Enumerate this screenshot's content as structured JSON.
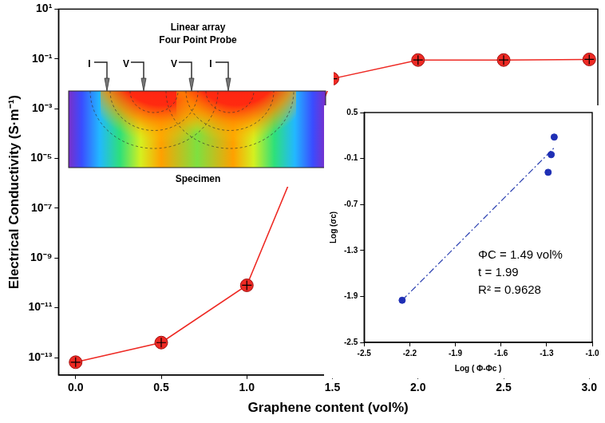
{
  "chart_data": [
    {
      "type": "line",
      "x_label": "Graphene content (vol%)",
      "y_label": "Electrical Conductivity (S·m⁻¹)",
      "x": [
        0,
        0.5,
        1,
        1.5,
        2,
        2.5,
        3
      ],
      "series": [
        {
          "color": "#ee2a24",
          "marker": "circle",
          "values": [
            6.5e-14,
            4e-13,
            8e-11,
            0.016,
            0.09,
            0.09,
            0.095
          ]
        }
      ],
      "log": "y",
      "xlim": [
        -0.1,
        3.05
      ],
      "ylim": [
        2e-14,
        10
      ],
      "xticks": [
        {
          "value": 0,
          "label": "0.0"
        },
        0.5,
        {
          "value": 1,
          "label": "1.0"
        },
        1.5,
        {
          "value": 2,
          "label": "2.0"
        },
        2.5,
        {
          "value": 3,
          "label": "3.0"
        }
      ],
      "yticks": [
        {
          "value": 1e-13,
          "label": "10⁻¹³"
        },
        {
          "value": 1e-11,
          "label": "10⁻¹¹"
        },
        {
          "value": 1e-09,
          "label": "10⁻⁹"
        },
        {
          "value": 1e-07,
          "label": "10⁻⁷"
        },
        {
          "value": 1e-05,
          "label": "10⁻⁵"
        },
        {
          "value": 0.001,
          "label": "10⁻³"
        },
        {
          "value": 0.1,
          "label": "10⁻¹"
        },
        {
          "value": 10,
          "label": "10¹"
        }
      ],
      "grid": false
    },
    {
      "type": "scatter",
      "x_label": "Log ( Φ-Φc )",
      "y_label": "Log (σc)",
      "series": [
        {
          "type": "scatter",
          "color": "#1f2fb5",
          "marker": "circle",
          "x": [
            -2.25,
            -1.29,
            -1.27,
            -1.25
          ],
          "values": [
            -1.95,
            -0.28,
            -0.05,
            0.18
          ]
        },
        {
          "type": "line",
          "color": "#2a3fb0",
          "line_style": "dashdot",
          "x": [
            -2.25,
            -1.25
          ],
          "values": [
            -1.95,
            0.04
          ]
        }
      ],
      "xlim": [
        -2.5,
        -1.0
      ],
      "ylim": [
        -2.5,
        0.5
      ],
      "xticks": [
        -2.5,
        -2.2,
        -1.9,
        -1.6,
        -1.3,
        {
          "value": -1.0,
          "label": "-1.0"
        }
      ],
      "yticks": [
        -2.5,
        -1.9,
        -1.3,
        -0.7,
        -0.1,
        0.5
      ],
      "annotations": [
        "ΦC = 1.49 vol%",
        "t = 1.99",
        "R² = 0.9628"
      ],
      "grid": false
    }
  ],
  "probe_diagram": {
    "title": [
      "Linear array",
      "Four Point Probe"
    ],
    "probes": [
      "I",
      "V",
      "V",
      "I"
    ],
    "specimen_label": "Specimen"
  }
}
